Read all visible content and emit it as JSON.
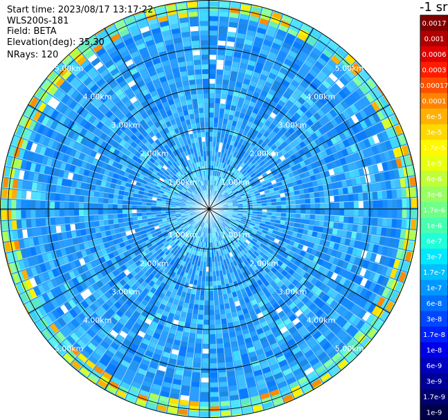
{
  "info": {
    "start_time": "Start time: 2023/08/17 13:17:22",
    "instrument": "WLS200s-181",
    "field": "Field: BETA",
    "elevation": "Elevation(deg): 35.30",
    "nrays": "NRays: 120"
  },
  "chart_data": {
    "type": "heatmap",
    "projection": "polar-ppi",
    "field": "BETA",
    "units_label": "-1 sr",
    "n_rays": 120,
    "range_rings_km": [
      1,
      2,
      3,
      4,
      5
    ],
    "ring_labels": [
      "1.00km",
      "2.00km",
      "3.00km",
      "4.00km",
      "5.00km"
    ],
    "max_range_km": 5.2,
    "radial_spokes_deg": [
      0,
      30,
      60,
      90,
      120,
      150,
      180,
      210,
      240,
      270,
      300,
      330
    ],
    "grid": true,
    "colorbar": {
      "placement": "right",
      "ticks": [
        "0.0017",
        "0.001",
        "0.0006",
        "0.0003",
        "0.00017",
        "0.0001",
        "6e-5",
        "3e-5",
        "1.7e-5",
        "1e-5",
        "6e-6",
        "3e-6",
        "1.7e-6",
        "1e-6",
        "6e-7",
        "3e-7",
        "1.7e-7",
        "1e-7",
        "6e-8",
        "3e-8",
        "1.7e-8",
        "1e-8",
        "6e-9",
        "3e-9",
        "1.7e-9",
        "1e-9"
      ],
      "colors": [
        "#800000",
        "#b00000",
        "#e00000",
        "#ff1c00",
        "#ff5000",
        "#ff8400",
        "#ffb000",
        "#ffd800",
        "#fff800",
        "#e8ff10",
        "#c0ff38",
        "#98ff60",
        "#70ff88",
        "#48ffb0",
        "#20ffd8",
        "#00e8ff",
        "#00c0ff",
        "#0098ff",
        "#0070ff",
        "#0048ff",
        "#0020ff",
        "#0000e8",
        "#0000c0",
        "#000098",
        "#000070",
        "#000048"
      ]
    },
    "typical_value_range": [
      "1.7e-7",
      "3e-8"
    ],
    "edge_value_range": [
      "1.7e-5",
      "1e-6"
    ]
  }
}
